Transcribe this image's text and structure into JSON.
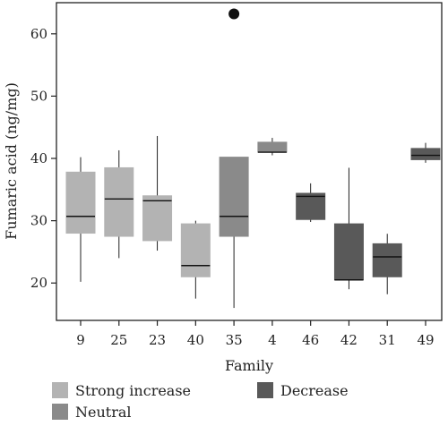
{
  "chart_data": {
    "type": "box",
    "xlabel": "Family",
    "ylabel": "Fumaric acid (ng/mg)",
    "ylim": [
      14,
      65
    ],
    "yticks": [
      20,
      30,
      40,
      50,
      60
    ],
    "legend_position": "bottom",
    "groups": [
      {
        "key": "strong",
        "label": "Strong increase",
        "color": "#b3b3b3"
      },
      {
        "key": "neutral",
        "label": "Neutral",
        "color": "#8a8a8a"
      },
      {
        "key": "decrease",
        "label": "Decrease",
        "color": "#595959"
      }
    ],
    "boxes": [
      {
        "category": "9",
        "group": "strong",
        "whisker_low": 20.2,
        "q1": 28.0,
        "median": 30.7,
        "q3": 37.8,
        "whisker_high": 40.2,
        "outliers": []
      },
      {
        "category": "25",
        "group": "strong",
        "whisker_low": 24.0,
        "q1": 27.5,
        "median": 33.5,
        "q3": 38.5,
        "whisker_high": 41.3,
        "outliers": []
      },
      {
        "category": "23",
        "group": "strong",
        "whisker_low": 25.2,
        "q1": 26.8,
        "median": 33.2,
        "q3": 34.0,
        "whisker_high": 43.6,
        "outliers": []
      },
      {
        "category": "40",
        "group": "strong",
        "whisker_low": 17.5,
        "q1": 21.0,
        "median": 22.8,
        "q3": 29.5,
        "whisker_high": 30.0,
        "outliers": []
      },
      {
        "category": "35",
        "group": "neutral",
        "whisker_low": 16.0,
        "q1": 27.5,
        "median": 30.7,
        "q3": 40.2,
        "whisker_high": 40.2,
        "outliers": [
          63.2
        ]
      },
      {
        "category": "4",
        "group": "neutral",
        "whisker_low": 40.5,
        "q1": 41.0,
        "median": 41.0,
        "q3": 42.6,
        "whisker_high": 43.3,
        "outliers": []
      },
      {
        "category": "46",
        "group": "decrease",
        "whisker_low": 29.8,
        "q1": 30.2,
        "median": 33.9,
        "q3": 34.4,
        "whisker_high": 36.0,
        "outliers": []
      },
      {
        "category": "42",
        "group": "decrease",
        "whisker_low": 19.0,
        "q1": 20.5,
        "median": 20.5,
        "q3": 29.5,
        "whisker_high": 38.5,
        "outliers": []
      },
      {
        "category": "31",
        "group": "decrease",
        "whisker_low": 18.2,
        "q1": 21.0,
        "median": 24.2,
        "q3": 26.3,
        "whisker_high": 27.9,
        "outliers": []
      },
      {
        "category": "49",
        "group": "decrease",
        "whisker_low": 39.3,
        "q1": 39.8,
        "median": 40.5,
        "q3": 41.6,
        "whisker_high": 42.5,
        "outliers": []
      }
    ]
  }
}
